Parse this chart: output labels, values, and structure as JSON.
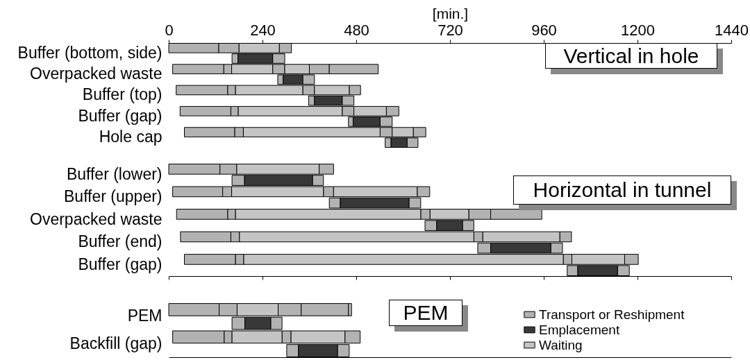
{
  "chart_data": [
    {
      "type": "bar",
      "orientation": "horizontal",
      "title": "Vertical in hole",
      "xlabel": "[min.]",
      "xlim": [
        0,
        1440
      ],
      "xticks": [
        0,
        240,
        480,
        720,
        960,
        1200,
        1440
      ],
      "categories": [
        "Buffer (bottom, side)",
        null,
        "Overpacked waste",
        null,
        "Buffer (top)",
        null,
        "Buffer (gap)",
        null,
        "Hole cap",
        null
      ],
      "series": [
        {
          "color": "#b2b2b2",
          "base": [
            0,
            162,
            10,
            279,
            19,
            358,
            29,
            460,
            40,
            554
          ],
          "values": [
            128,
            15,
            131,
            14,
            132,
            15,
            130,
            12,
            129,
            15
          ]
        },
        {
          "color": "#b2b2b2",
          "base": [
            128,
            266,
            141,
            343,
            151,
            444,
            159,
            541,
            169,
            610
          ],
          "values": [
            52,
            31,
            20,
            30,
            20,
            30,
            19,
            31,
            22,
            28
          ]
        },
        {
          "color": "#b2b2b2",
          "base": [
            283,
            null,
            266,
            null,
            343,
            null,
            444,
            null,
            541,
            null
          ],
          "values": [
            31,
            null,
            31,
            null,
            30,
            null,
            30,
            null,
            31,
            null
          ]
        },
        {
          "color": "#b2b2b2",
          "base": [
            null,
            null,
            360,
            null,
            462,
            null,
            557,
            null,
            626,
            null
          ],
          "values": [
            null,
            null,
            51,
            null,
            29,
            null,
            32,
            null,
            32,
            null
          ]
        },
        {
          "color": "#b2b2b2",
          "base": [
            null,
            null,
            411,
            null,
            null,
            null,
            null,
            null,
            null,
            null
          ],
          "values": [
            null,
            null,
            125,
            null,
            null,
            null,
            null,
            null,
            null,
            null
          ]
        },
        {
          "color": "#383838",
          "base": [
            null,
            177,
            null,
            293,
            null,
            373,
            null,
            472,
            null,
            569
          ],
          "values": [
            null,
            89,
            null,
            50,
            null,
            71,
            null,
            69,
            null,
            41
          ]
        },
        {
          "color": "#c4c4c4",
          "base": [
            180,
            null,
            161,
            null,
            171,
            null,
            178,
            null,
            191,
            null
          ],
          "values": [
            103,
            null,
            105,
            null,
            172,
            null,
            266,
            null,
            350,
            null
          ]
        },
        {
          "color": "#c4c4c4",
          "base": [
            null,
            null,
            297,
            null,
            373,
            null,
            474,
            null,
            572,
            null
          ],
          "values": [
            null,
            null,
            63,
            null,
            89,
            null,
            83,
            null,
            54,
            null
          ]
        }
      ]
    },
    {
      "type": "bar",
      "orientation": "horizontal",
      "title": "Horizontal in tunnel",
      "xlim": [
        0,
        1440
      ],
      "xticks": [
        {
          "value": 0,
          "label": null
        },
        {
          "value": 240,
          "label": null
        },
        {
          "value": 480,
          "label": null
        },
        {
          "value": 720,
          "label": null
        },
        {
          "value": 960,
          "label": null
        },
        {
          "value": 1200,
          "label": null
        },
        {
          "value": 1440,
          "label": null
        }
      ],
      "tick_labels": "y",
      "categories": [
        "Buffer (lower)",
        null,
        "Buffer (upper)",
        null,
        "Overpacked waste",
        null,
        "Buffer (end)",
        null,
        "Buffer (gap)",
        null
      ],
      "series": [
        {
          "color": "#b2b2b2",
          "base": [
            0,
            162,
            10,
            411,
            20,
            656,
            30,
            791,
            40,
            1020
          ],
          "values": [
            131,
            32,
            128,
            28,
            131,
            30,
            129,
            33,
            131,
            27
          ]
        },
        {
          "color": "#b2b2b2",
          "base": [
            131,
            368,
            138,
            615,
            151,
            752,
            159,
            978,
            171,
            1149
          ],
          "values": [
            43,
            28,
            23,
            30,
            20,
            29,
            22,
            30,
            21,
            30
          ]
        },
        {
          "color": "#b2b2b2",
          "base": [
            385,
            null,
            396,
            null,
            645,
            null,
            781,
            null,
            1010,
            null
          ],
          "values": [
            37,
            null,
            26,
            null,
            24,
            null,
            23,
            null,
            22,
            null
          ]
        },
        {
          "color": "#b2b2b2",
          "base": [
            null,
            null,
            636,
            null,
            768,
            null,
            1001,
            null,
            1167,
            null
          ],
          "values": [
            null,
            null,
            32,
            null,
            56,
            null,
            30,
            null,
            35,
            null
          ]
        },
        {
          "color": "#b2b2b2",
          "base": [
            null,
            null,
            null,
            null,
            824,
            null,
            null,
            null,
            null,
            null
          ],
          "values": [
            null,
            null,
            null,
            null,
            131,
            null,
            null,
            null,
            null,
            null
          ]
        },
        {
          "color": "#383838",
          "base": [
            null,
            194,
            null,
            439,
            null,
            686,
            null,
            824,
            null,
            1047
          ],
          "values": [
            null,
            174,
            null,
            176,
            null,
            66,
            null,
            154,
            null,
            102
          ]
        },
        {
          "color": "#c4c4c4",
          "base": [
            174,
            null,
            161,
            null,
            171,
            null,
            181,
            null,
            192,
            null
          ],
          "values": [
            211,
            null,
            235,
            null,
            474,
            null,
            600,
            null,
            818,
            null
          ]
        },
        {
          "color": "#c4c4c4",
          "base": [
            null,
            null,
            422,
            null,
            669,
            null,
            804,
            null,
            1032,
            null
          ],
          "values": [
            null,
            null,
            214,
            null,
            99,
            null,
            197,
            null,
            135,
            null
          ]
        }
      ]
    },
    {
      "type": "bar",
      "orientation": "horizontal",
      "title": "PEM",
      "xlim": [
        0,
        1440
      ],
      "tick_labels": "y",
      "legend": "right",
      "categories": [
        "PEM",
        null,
        "Backfill (gap)",
        null
      ],
      "series": [
        {
          "name": "Transport or Reshipment",
          "color": "#b2b2b2",
          "base": [
            0,
            162,
            10,
            302
          ],
          "values": [
            129,
            33,
            132,
            30
          ]
        },
        {
          "color": "#b2b2b2",
          "base": [
            129,
            261,
            142,
            432
          ],
          "values": [
            46,
            29,
            20,
            30
          ]
        },
        {
          "color": "#b2b2b2",
          "base": [
            280,
            null,
            290,
            null
          ],
          "values": [
            59,
            null,
            23,
            null
          ]
        },
        {
          "color": "#b2b2b2",
          "base": [
            339,
            null,
            451,
            null
          ],
          "values": [
            121,
            null,
            39,
            null
          ]
        },
        {
          "color": "#b2b2b2",
          "base": [
            460,
            null,
            null,
            null
          ],
          "values": [
            8,
            null,
            null,
            null
          ]
        },
        {
          "name": "Emplacement",
          "color": "#383838",
          "base": [
            null,
            195,
            null,
            332
          ],
          "values": [
            null,
            66,
            null,
            100
          ]
        },
        {
          "name": "Waiting",
          "color": "#c4c4c4",
          "base": [
            175,
            null,
            162,
            null
          ],
          "values": [
            105,
            null,
            128,
            null
          ]
        },
        {
          "color": "#c4c4c4",
          "base": [
            null,
            null,
            313,
            null
          ],
          "values": [
            null,
            null,
            138,
            null
          ]
        }
      ]
    }
  ]
}
